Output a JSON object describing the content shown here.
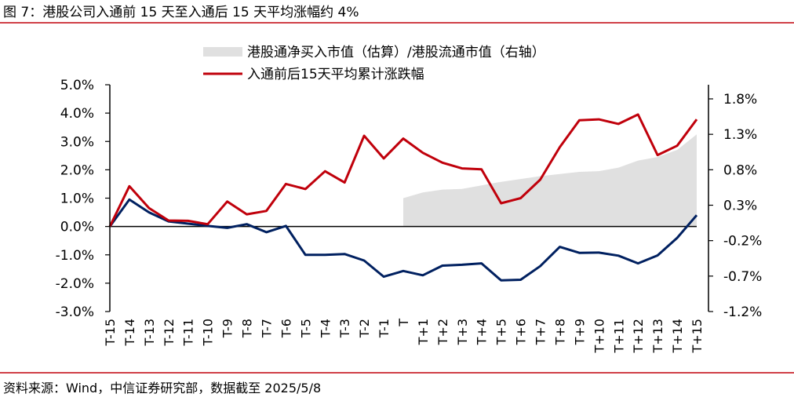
{
  "header": {
    "title": "图 7：港股公司入通前 15 天至入通后 15 天平均涨幅约 4%"
  },
  "footer": {
    "source": "资料来源：Wind，中信证券研究部，数据截至 2025/5/8"
  },
  "colors": {
    "accent": "#c0000b",
    "navy": "#002060",
    "area": "#e0e0e0",
    "rule": "#c0000b"
  },
  "chart_data": {
    "type": "line",
    "categories": [
      "T-15",
      "T-14",
      "T-13",
      "T-12",
      "T-11",
      "T-10",
      "T-9",
      "T-8",
      "T-7",
      "T-6",
      "T-5",
      "T-4",
      "T-3",
      "T-2",
      "T-1",
      "T",
      "T+1",
      "T+2",
      "T+3",
      "T+4",
      "T+5",
      "T+6",
      "T+7",
      "T+8",
      "T+9",
      "T+10",
      "T+11",
      "T+12",
      "T+13",
      "T+14",
      "T+15"
    ],
    "y_left": {
      "ylim": [
        -3.0,
        5.0
      ],
      "ticks": [
        "5.0%",
        "4.0%",
        "3.0%",
        "2.0%",
        "1.0%",
        "0.0%",
        "-1.0%",
        "-2.0%",
        "-3.0%"
      ],
      "tick_values": [
        5,
        4,
        3,
        2,
        1,
        0,
        -1,
        -2,
        -3
      ]
    },
    "y_right": {
      "ylim": [
        -1.2,
        2.0
      ],
      "ticks": [
        "1.8%",
        "1.3%",
        "0.8%",
        "0.3%",
        "-0.2%",
        "-0.7%",
        "-1.2%"
      ],
      "tick_values": [
        1.8,
        1.3,
        0.8,
        0.3,
        -0.2,
        -0.7,
        -1.2
      ]
    },
    "legend": {
      "position": "top-right"
    },
    "series": [
      {
        "name": "港股通净买入市值（估算）/港股流通市值（右轴）",
        "type": "area",
        "axis": "right",
        "color": "#e0e0e0",
        "values": [
          null,
          null,
          null,
          null,
          null,
          null,
          null,
          null,
          null,
          null,
          null,
          null,
          null,
          null,
          null,
          0.4,
          0.48,
          0.52,
          0.53,
          0.58,
          0.63,
          0.67,
          0.71,
          0.74,
          0.77,
          0.78,
          0.83,
          0.93,
          0.98,
          1.08,
          1.3
        ]
      },
      {
        "name": "入通前后15天平均累计涨跌幅",
        "type": "line",
        "axis": "left",
        "color": "#c0000b",
        "values": [
          0.0,
          1.42,
          0.65,
          0.21,
          0.2,
          0.08,
          0.88,
          0.43,
          0.55,
          1.5,
          1.32,
          1.95,
          1.55,
          3.2,
          2.4,
          3.1,
          2.6,
          2.25,
          2.05,
          2.02,
          0.82,
          1.0,
          1.65,
          2.8,
          3.75,
          3.78,
          3.62,
          3.95,
          2.52,
          2.85,
          3.78
        ]
      },
      {
        "name": "",
        "type": "line",
        "axis": "left",
        "color": "#002060",
        "values": [
          0.0,
          0.95,
          0.5,
          0.18,
          0.1,
          0.02,
          -0.05,
          0.08,
          -0.2,
          0.02,
          -1.0,
          -1.0,
          -0.97,
          -1.2,
          -1.77,
          -1.57,
          -1.72,
          -1.38,
          -1.35,
          -1.3,
          -1.9,
          -1.88,
          -1.4,
          -0.72,
          -0.93,
          -0.92,
          -1.03,
          -1.3,
          -1.02,
          -0.4,
          0.4
        ]
      }
    ]
  }
}
